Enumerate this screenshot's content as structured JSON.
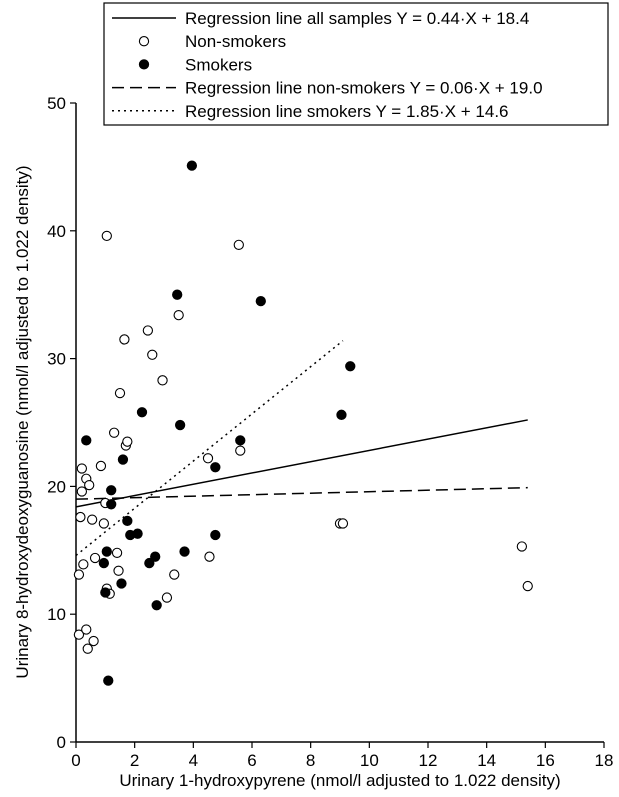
{
  "chart_data": {
    "type": "scatter",
    "xlabel": "Urinary 1-hydroxypyrene (nmol/l adjusted to 1.022 density)",
    "ylabel": "Urinary 8-hydroxydeoxyguanosine (nmol/l adjusted to 1.022 density)",
    "xlim": [
      0,
      18
    ],
    "ylim": [
      0,
      50
    ],
    "xticks": [
      "0",
      "2",
      "4",
      "6",
      "8",
      "10",
      "12",
      "14",
      "16",
      "18"
    ],
    "yticks": [
      "0",
      "10",
      "20",
      "30",
      "40",
      "50"
    ],
    "grid": false,
    "legend_position": "top-right",
    "series": [
      {
        "name": "Non-smokers",
        "marker": "open-circle",
        "points": [
          [
            0.1,
            13.1
          ],
          [
            0.1,
            8.4
          ],
          [
            0.15,
            17.6
          ],
          [
            0.2,
            19.6
          ],
          [
            0.2,
            21.4
          ],
          [
            0.25,
            13.9
          ],
          [
            0.35,
            8.8
          ],
          [
            0.35,
            20.6
          ],
          [
            0.4,
            7.3
          ],
          [
            0.45,
            20.1
          ],
          [
            0.55,
            17.4
          ],
          [
            0.6,
            7.9
          ],
          [
            0.65,
            14.4
          ],
          [
            0.85,
            21.6
          ],
          [
            0.95,
            17.1
          ],
          [
            1.0,
            18.7
          ],
          [
            1.05,
            39.6
          ],
          [
            1.05,
            12.0
          ],
          [
            1.15,
            11.6
          ],
          [
            1.3,
            24.2
          ],
          [
            1.4,
            14.8
          ],
          [
            1.45,
            13.4
          ],
          [
            1.5,
            27.3
          ],
          [
            1.65,
            31.5
          ],
          [
            1.7,
            23.2
          ],
          [
            1.75,
            23.5
          ],
          [
            2.45,
            32.2
          ],
          [
            2.6,
            30.3
          ],
          [
            2.95,
            28.3
          ],
          [
            3.1,
            11.3
          ],
          [
            3.35,
            13.1
          ],
          [
            3.5,
            33.4
          ],
          [
            4.5,
            22.2
          ],
          [
            4.55,
            14.5
          ],
          [
            5.55,
            38.9
          ],
          [
            5.6,
            22.8
          ],
          [
            9.0,
            17.1
          ],
          [
            9.1,
            17.1
          ],
          [
            15.2,
            15.3
          ],
          [
            15.4,
            12.2
          ]
        ]
      },
      {
        "name": "Smokers",
        "marker": "filled-circle",
        "points": [
          [
            0.35,
            23.6
          ],
          [
            0.95,
            14.0
          ],
          [
            1.0,
            11.7
          ],
          [
            1.05,
            14.9
          ],
          [
            1.1,
            4.8
          ],
          [
            1.2,
            19.7
          ],
          [
            1.2,
            18.6
          ],
          [
            1.55,
            12.4
          ],
          [
            1.6,
            22.1
          ],
          [
            1.75,
            17.3
          ],
          [
            1.85,
            16.2
          ],
          [
            2.1,
            16.3
          ],
          [
            2.25,
            25.8
          ],
          [
            2.5,
            14.0
          ],
          [
            2.7,
            14.5
          ],
          [
            2.75,
            10.7
          ],
          [
            3.45,
            35.0
          ],
          [
            3.55,
            24.8
          ],
          [
            3.7,
            14.9
          ],
          [
            3.95,
            45.1
          ],
          [
            4.75,
            21.5
          ],
          [
            4.75,
            16.2
          ],
          [
            5.6,
            23.6
          ],
          [
            6.3,
            34.5
          ],
          [
            9.05,
            25.6
          ],
          [
            9.35,
            29.4
          ]
        ]
      }
    ],
    "lines": [
      {
        "name": "Regression line all samples Y = 0.44·X + 18.4",
        "style": "solid",
        "x": [
          0,
          15.4
        ],
        "y": [
          18.4,
          25.2
        ]
      },
      {
        "name": "Regression line non-smokers Y = 0.06·X + 19.0",
        "style": "dashed",
        "x": [
          0,
          15.4
        ],
        "y": [
          19.0,
          19.9
        ]
      },
      {
        "name": "Regression line smokers Y = 1.85·X + 14.6",
        "style": "dotted",
        "x": [
          0,
          9.1
        ],
        "y": [
          14.6,
          31.4
        ]
      }
    ],
    "legend": [
      {
        "label": "Regression line all samples Y = 0.44·X + 18.4",
        "symbol": "solid-line"
      },
      {
        "label": "Non-smokers",
        "symbol": "open-circle"
      },
      {
        "label": "Smokers",
        "symbol": "filled-circle"
      },
      {
        "label": "Regression line non-smokers Y = 0.06·X + 19.0",
        "symbol": "dashed-line"
      },
      {
        "label": "Regression line smokers Y = 1.85·X + 14.6",
        "symbol": "dotted-line"
      }
    ]
  }
}
